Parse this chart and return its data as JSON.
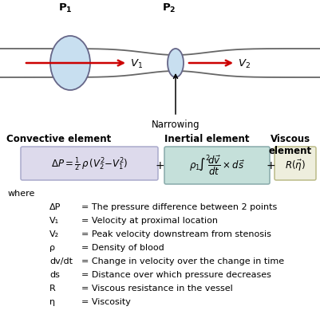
{
  "bg_color": "#ffffff",
  "vessel_line_color": "#666666",
  "ellipse_fill": "#c8dff0",
  "ellipse_edge": "#888888",
  "arrow_color": "#cc0000",
  "box1_fill": "#dddaec",
  "box1_edge": "#aaaacc",
  "box2_fill": "#c5e0da",
  "box2_edge": "#88aaaa",
  "box3_fill": "#eeeedd",
  "box3_edge": "#bbbb88",
  "narrowing_label": "Narrowing",
  "convective_label": "Convective element",
  "inertial_label": "Inertial element",
  "viscous_label": "Viscous\nelement",
  "where_lines": [
    [
      "ΔP",
      "= The pressure difference between 2 points"
    ],
    [
      "V₁",
      "= Velocity at proximal location"
    ],
    [
      "V₂",
      "= Peak velocity downstream from stenosis"
    ],
    [
      "ρ",
      "= Density of blood"
    ],
    [
      "dv/dt",
      "= Change in velocity over the change in time"
    ],
    [
      "ds",
      "= Distance over which pressure decreases"
    ],
    [
      "R",
      "= Viscous resistance in the vessel"
    ],
    [
      "η",
      "= Viscosity"
    ]
  ]
}
